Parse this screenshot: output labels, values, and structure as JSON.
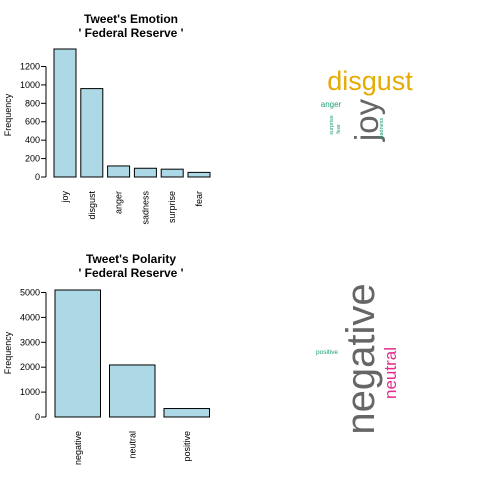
{
  "chart_data": [
    {
      "type": "bar",
      "title": "Tweet's Emotion",
      "subtitle": "' Federal Reserve '",
      "xlabel": "",
      "ylabel": "Frequency",
      "categories": [
        "joy",
        "disgust",
        "anger",
        "sadness",
        "surprise",
        "fear"
      ],
      "values": [
        1390,
        960,
        120,
        95,
        85,
        50
      ],
      "ylim": [
        0,
        1390
      ],
      "yticks": [
        "0",
        "200",
        "400",
        "600",
        "800",
        "1000",
        "1200"
      ],
      "bar_color": "#add8e6"
    },
    {
      "type": "bar",
      "title": "Tweet's Polarity",
      "subtitle": "' Federal Reserve '",
      "xlabel": "",
      "ylabel": "Frequency",
      "categories": [
        "negative",
        "neutral",
        "positive"
      ],
      "values": [
        5100,
        2090,
        340
      ],
      "ylim": [
        0,
        5100
      ],
      "yticks": [
        "0",
        "1000",
        "2000",
        "3000",
        "4000",
        "5000"
      ],
      "bar_color": "#add8e6"
    }
  ],
  "wordclouds": [
    {
      "words": [
        {
          "text": "disgust",
          "color": "#e6ab02",
          "rotated": false
        },
        {
          "text": "joy",
          "color": "#666666",
          "rotated": true
        },
        {
          "text": "anger",
          "color": "#1b9e77",
          "rotated": false
        },
        {
          "text": "surprise",
          "color": "#1b9e77",
          "rotated": true
        },
        {
          "text": "fear",
          "color": "#1b9e77",
          "rotated": true
        },
        {
          "text": "sadness",
          "color": "#1b9e77",
          "rotated": true
        }
      ]
    },
    {
      "words": [
        {
          "text": "negative",
          "color": "#666666",
          "rotated": true
        },
        {
          "text": "neutral",
          "color": "#e7298a",
          "rotated": true
        },
        {
          "text": "positive",
          "color": "#1b9e77",
          "rotated": false
        }
      ]
    }
  ]
}
